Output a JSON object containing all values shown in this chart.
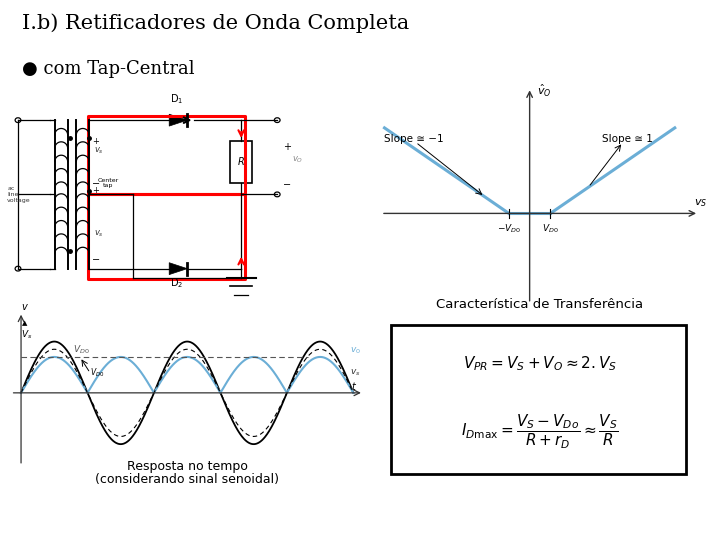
{
  "title1": "I.b) Retificadores de Onda Completa",
  "title2": "● com Tap-Central",
  "transfer_label": "Característica de Transferência",
  "time_label1": "Resposta no tempo",
  "time_label2": "(considerando sinal senoidal)",
  "slope_neg": "Slope ≅ −1",
  "slope_pos": "Slope ≅ 1",
  "vo_label": "$\\hat{v}_O$",
  "vs_label": "$v_S$",
  "bg_color": "#ffffff",
  "line_color_blue": "#6baed6",
  "line_color_black": "#000000",
  "axis_color": "#555555",
  "formula_border": "#000000",
  "vdo_neg_label": "$-V_{D0}$",
  "vdo_pos_label": "$V_{D0}$"
}
